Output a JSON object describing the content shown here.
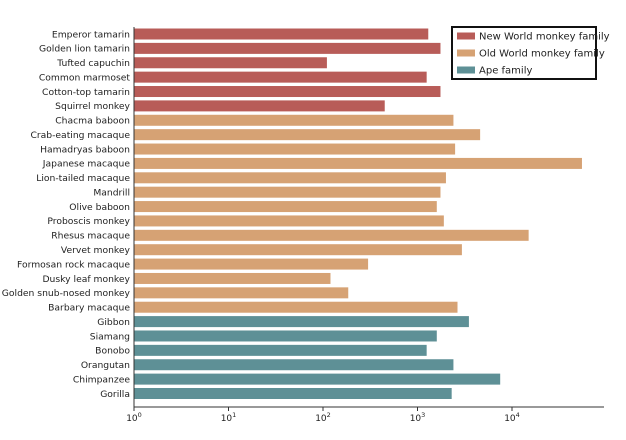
{
  "chart_data": {
    "type": "bar",
    "orientation": "horizontal",
    "x_scale": "log",
    "xlim": [
      1,
      80000
    ],
    "title": "",
    "xlabel": "",
    "ylabel": "",
    "grid": false,
    "legend_position": "top-right",
    "x_ticks": [
      {
        "value": 1,
        "base": "10",
        "exp": "0"
      },
      {
        "value": 10,
        "base": "10",
        "exp": "1"
      },
      {
        "value": 100,
        "base": "10",
        "exp": "2"
      },
      {
        "value": 1000,
        "base": "10",
        "exp": "3"
      },
      {
        "value": 10000,
        "base": "10",
        "exp": "4"
      }
    ],
    "legend": [
      {
        "label": "New World monkey family",
        "color": "#b85c58"
      },
      {
        "label": "Old World monkey family",
        "color": "#d6a274"
      },
      {
        "label": "Ape family",
        "color": "#5e9096"
      }
    ],
    "categories": [
      {
        "name": "Emperor tamarin",
        "value": 1300,
        "group": 0
      },
      {
        "name": "Golden lion tamarin",
        "value": 1750,
        "group": 0
      },
      {
        "name": "Tufted capuchin",
        "value": 110,
        "group": 0
      },
      {
        "name": "Common marmoset",
        "value": 1250,
        "group": 0
      },
      {
        "name": "Cotton-top tamarin",
        "value": 1750,
        "group": 0
      },
      {
        "name": "Squirrel monkey",
        "value": 450,
        "group": 0
      },
      {
        "name": "Chacma baboon",
        "value": 2400,
        "group": 1
      },
      {
        "name": "Crab-eating macaque",
        "value": 4600,
        "group": 1
      },
      {
        "name": "Hamadryas baboon",
        "value": 2500,
        "group": 1
      },
      {
        "name": "Japanese macaque",
        "value": 55000,
        "group": 1
      },
      {
        "name": "Lion-tailed macaque",
        "value": 2000,
        "group": 1
      },
      {
        "name": "Mandrill",
        "value": 1750,
        "group": 1
      },
      {
        "name": "Olive baboon",
        "value": 1600,
        "group": 1
      },
      {
        "name": "Proboscis monkey",
        "value": 1900,
        "group": 1
      },
      {
        "name": "Rhesus macaque",
        "value": 15000,
        "group": 1
      },
      {
        "name": "Vervet monkey",
        "value": 2950,
        "group": 1
      },
      {
        "name": "Formosan rock macaque",
        "value": 300,
        "group": 1
      },
      {
        "name": "Dusky leaf monkey",
        "value": 120,
        "group": 1
      },
      {
        "name": "Golden snub-nosed monkey",
        "value": 185,
        "group": 1
      },
      {
        "name": "Barbary macaque",
        "value": 2650,
        "group": 1
      },
      {
        "name": "Gibbon",
        "value": 3500,
        "group": 2
      },
      {
        "name": "Siamang",
        "value": 1600,
        "group": 2
      },
      {
        "name": "Bonobo",
        "value": 1250,
        "group": 2
      },
      {
        "name": "Orangutan",
        "value": 2400,
        "group": 2
      },
      {
        "name": "Chimpanzee",
        "value": 7500,
        "group": 2
      },
      {
        "name": "Gorilla",
        "value": 2300,
        "group": 2
      }
    ]
  }
}
